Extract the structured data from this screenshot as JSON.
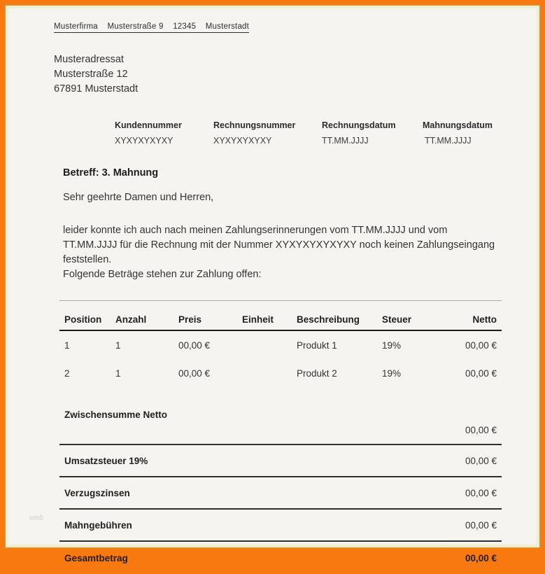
{
  "doc": {
    "sender_line": "Musterfirma    Musterstraße 9    12345    Musterstadt",
    "recipient": {
      "name": "Musteradressat",
      "street": "Musterstraße 12",
      "city": "67891 Musterstadt"
    },
    "meta": [
      {
        "label": "Kundennummer",
        "value": "XYXYXYXYXY"
      },
      {
        "label": "Rechnungsnummer",
        "value": "XYXYXYXYXY"
      },
      {
        "label": "Rechnungsdatum",
        "value": "TT.MM.JJJJ"
      },
      {
        "label": "Mahnungsdatum",
        "value": "TT.MM.JJJJ"
      }
    ],
    "subject": "Betreff: 3. Mahnung",
    "salutation": "Sehr geehrte Damen und Herren,",
    "body_paragraph": "leider konnte ich auch nach meinen Zahlungserinnerungen vom TT.MM.JJJJ und vom TT.MM.JJJJ für die Rechnung mit der Nummer XYXYXYXYXYXY noch keinen Zahlungseingang feststellen.",
    "body_line2": "Folgende Beträge stehen zur Zahlung offen:",
    "table": {
      "headers": [
        "Position",
        "Anzahl",
        "Preis",
        "Einheit",
        "Beschreibung",
        "Steuer",
        "Netto"
      ],
      "rows": [
        {
          "position": "1",
          "anzahl": "1",
          "preis": "00,00 €",
          "einheit": "",
          "beschreibung": "Produkt 1",
          "steuer": "19%",
          "netto": "00,00 €"
        },
        {
          "position": "2",
          "anzahl": "1",
          "preis": "00,00 €",
          "einheit": "",
          "beschreibung": "Produkt 2",
          "steuer": "19%",
          "netto": "00,00 €"
        }
      ],
      "summary": [
        {
          "label": "Zwischensumme Netto",
          "value": "00,00 €"
        },
        {
          "label": "Umsatzsteuer 19%",
          "value": "00,00 €"
        },
        {
          "label": "Verzugszinsen",
          "value": "00,00 €"
        },
        {
          "label": "Mahngebühren",
          "value": "00,00 €"
        },
        {
          "label": "Gesamtbetrag",
          "value": "00,00 €"
        }
      ]
    },
    "watermark": "web",
    "colors": {
      "frame_orange": "#f8790f",
      "inner_edge": "#f0eecb",
      "page_bg": "#f5f4f1",
      "text": "#3a3a3a"
    }
  }
}
